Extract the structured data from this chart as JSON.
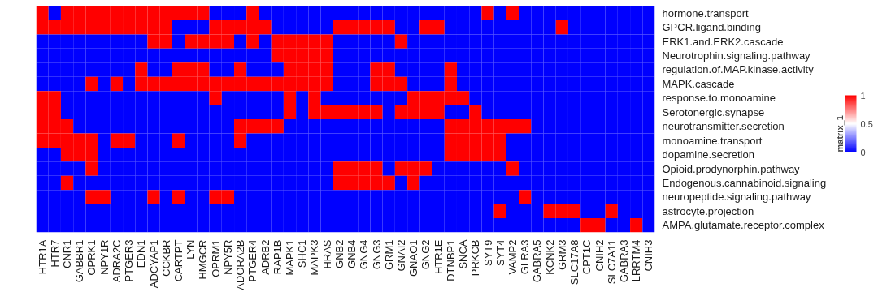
{
  "chart_data": {
    "type": "heatmap",
    "clabel": "matrix_1",
    "clim": [
      0,
      1
    ],
    "cticks": [
      0,
      0.5,
      1
    ],
    "categories": [
      "HTR1A",
      "HTR7",
      "CNR1",
      "GABBR1",
      "OPRK1",
      "NPY1R",
      "ADRA2C",
      "PTGER3",
      "EDN1",
      "ADCYAP1",
      "CCKBR",
      "CARTPT",
      "LYN",
      "HMGCR",
      "OPRM1",
      "NPY5R",
      "ADORA2B",
      "PTGER4",
      "ADRB2",
      "RAP1B",
      "MAPK1",
      "SHC1",
      "MAPK3",
      "HRAS",
      "GNB2",
      "GNB4",
      "GNG4",
      "GNG3",
      "GRM1",
      "GNAI2",
      "GNAO1",
      "GNG2",
      "HTR1E",
      "DTNBP1",
      "SNCA",
      "PRKCB",
      "SYT9",
      "SYT4",
      "VAMP2",
      "GLRA3",
      "GABRA5",
      "KCNK2",
      "GRM3",
      "SLC17A8",
      "CPT1C",
      "CNIH2",
      "SLC7A11",
      "GABRA3",
      "LRRTM4",
      "CNIH3"
    ],
    "y_categories": [
      "hormone.transport",
      "GPCR.ligand.binding",
      "ERK1.and.ERK2.cascade",
      "Neurotrophin.signaling.pathway",
      "regulation.of.MAP.kinase.activity",
      "MAPK.cascade",
      "response.to.monoamine",
      "Serotonergic.synapse",
      "neurotransmitter.secretion",
      "monoamine.transport",
      "dopamine.secretion",
      "Opioid.prodynorphin.pathway",
      "Endogenous.cannabinoid.signaling",
      "neuropeptide.signaling.pathway",
      "astrocyte.projection",
      "AMPA.glutamate.receptor.complex"
    ],
    "cells": [
      [
        1,
        0,
        1,
        1,
        1,
        1,
        1,
        1,
        1,
        1,
        1,
        1,
        1,
        1,
        0,
        0,
        0,
        1,
        0,
        0,
        0,
        0,
        0,
        0,
        0,
        0,
        0,
        0,
        0,
        0,
        0,
        0,
        0,
        0,
        0,
        0,
        1,
        0,
        1,
        0,
        0,
        0,
        0,
        0,
        0,
        0,
        0,
        0,
        0,
        0
      ],
      [
        1,
        1,
        1,
        1,
        1,
        1,
        1,
        1,
        1,
        1,
        1,
        0,
        0,
        0,
        1,
        1,
        1,
        1,
        1,
        0,
        0,
        0,
        0,
        0,
        1,
        1,
        1,
        1,
        1,
        0,
        0,
        1,
        1,
        0,
        0,
        0,
        0,
        0,
        0,
        0,
        0,
        0,
        1,
        0,
        0,
        0,
        0,
        0,
        0,
        0
      ],
      [
        0,
        0,
        0,
        0,
        0,
        0,
        0,
        0,
        0,
        1,
        1,
        0,
        1,
        1,
        1,
        1,
        0,
        1,
        0,
        1,
        1,
        1,
        1,
        1,
        0,
        0,
        0,
        0,
        0,
        1,
        0,
        0,
        0,
        0,
        0,
        0,
        0,
        0,
        0,
        0,
        0,
        0,
        0,
        0,
        0,
        0,
        0,
        0,
        0,
        0
      ],
      [
        0,
        0,
        0,
        0,
        0,
        0,
        0,
        0,
        0,
        0,
        0,
        0,
        0,
        0,
        0,
        0,
        0,
        0,
        0,
        1,
        1,
        1,
        1,
        1,
        0,
        0,
        0,
        0,
        0,
        0,
        0,
        0,
        0,
        0,
        0,
        0,
        0,
        0,
        0,
        0,
        0,
        0,
        0,
        0,
        0,
        0,
        0,
        0,
        0,
        0
      ],
      [
        0,
        0,
        0,
        0,
        0,
        0,
        0,
        0,
        1,
        0,
        0,
        1,
        1,
        1,
        0,
        0,
        1,
        0,
        0,
        0,
        1,
        1,
        1,
        1,
        0,
        0,
        0,
        1,
        1,
        0,
        0,
        0,
        0,
        1,
        0,
        0,
        0,
        0,
        0,
        0,
        0,
        0,
        0,
        0,
        0,
        0,
        0,
        0,
        0,
        0
      ],
      [
        0,
        0,
        0,
        0,
        1,
        0,
        1,
        0,
        1,
        1,
        1,
        1,
        1,
        1,
        1,
        1,
        1,
        1,
        1,
        1,
        1,
        1,
        1,
        1,
        0,
        0,
        0,
        1,
        1,
        1,
        0,
        0,
        0,
        1,
        0,
        0,
        0,
        0,
        0,
        0,
        0,
        0,
        0,
        0,
        0,
        0,
        0,
        0,
        0,
        0
      ],
      [
        1,
        1,
        0,
        0,
        0,
        0,
        0,
        0,
        0,
        0,
        0,
        0,
        0,
        0,
        1,
        0,
        0,
        0,
        0,
        0,
        1,
        0,
        1,
        0,
        0,
        0,
        0,
        0,
        0,
        0,
        1,
        1,
        1,
        1,
        1,
        0,
        0,
        0,
        0,
        0,
        0,
        0,
        0,
        0,
        0,
        0,
        0,
        0,
        0,
        0
      ],
      [
        1,
        1,
        0,
        0,
        0,
        0,
        0,
        0,
        0,
        0,
        0,
        0,
        0,
        0,
        0,
        0,
        0,
        0,
        0,
        0,
        1,
        0,
        1,
        1,
        1,
        1,
        1,
        1,
        0,
        1,
        1,
        1,
        1,
        0,
        0,
        1,
        0,
        0,
        0,
        0,
        0,
        0,
        0,
        0,
        0,
        0,
        0,
        0,
        0,
        0
      ],
      [
        1,
        1,
        1,
        0,
        0,
        0,
        0,
        0,
        0,
        0,
        0,
        0,
        0,
        0,
        0,
        0,
        1,
        1,
        1,
        1,
        0,
        0,
        0,
        0,
        0,
        0,
        0,
        0,
        0,
        0,
        0,
        0,
        0,
        1,
        1,
        1,
        1,
        1,
        1,
        1,
        0,
        0,
        0,
        0,
        0,
        0,
        0,
        0,
        0,
        0
      ],
      [
        1,
        1,
        1,
        1,
        1,
        0,
        1,
        1,
        0,
        0,
        0,
        1,
        0,
        0,
        0,
        0,
        1,
        0,
        0,
        0,
        0,
        0,
        0,
        0,
        0,
        0,
        0,
        0,
        0,
        0,
        0,
        0,
        0,
        1,
        1,
        1,
        1,
        1,
        0,
        0,
        0,
        0,
        0,
        0,
        0,
        0,
        0,
        0,
        0,
        0
      ],
      [
        0,
        0,
        1,
        1,
        1,
        0,
        0,
        0,
        0,
        0,
        0,
        0,
        0,
        0,
        0,
        0,
        0,
        0,
        0,
        0,
        0,
        0,
        0,
        0,
        0,
        0,
        0,
        0,
        0,
        0,
        0,
        0,
        0,
        1,
        1,
        1,
        1,
        1,
        0,
        0,
        0,
        0,
        0,
        0,
        0,
        0,
        0,
        0,
        0,
        0
      ],
      [
        0,
        0,
        0,
        0,
        1,
        0,
        0,
        0,
        0,
        0,
        0,
        0,
        0,
        0,
        0,
        0,
        0,
        0,
        0,
        0,
        0,
        0,
        0,
        0,
        1,
        1,
        1,
        1,
        0,
        1,
        1,
        1,
        0,
        0,
        0,
        0,
        0,
        0,
        1,
        0,
        0,
        0,
        0,
        0,
        0,
        0,
        0,
        0,
        0,
        0
      ],
      [
        0,
        0,
        1,
        0,
        0,
        0,
        0,
        0,
        0,
        0,
        0,
        0,
        0,
        0,
        0,
        0,
        0,
        0,
        0,
        0,
        0,
        0,
        0,
        0,
        1,
        1,
        1,
        1,
        1,
        0,
        1,
        0,
        0,
        0,
        0,
        0,
        0,
        0,
        0,
        0,
        0,
        0,
        0,
        0,
        0,
        0,
        0,
        0,
        0,
        0
      ],
      [
        0,
        0,
        0,
        0,
        1,
        1,
        0,
        0,
        0,
        1,
        0,
        1,
        0,
        0,
        1,
        1,
        0,
        0,
        0,
        0,
        0,
        0,
        0,
        0,
        0,
        0,
        0,
        0,
        0,
        0,
        0,
        0,
        0,
        0,
        0,
        0,
        0,
        0,
        0,
        1,
        0,
        0,
        0,
        0,
        0,
        0,
        0,
        0,
        0,
        0
      ],
      [
        0,
        0,
        0,
        0,
        0,
        0,
        0,
        0,
        0,
        0,
        0,
        0,
        0,
        0,
        0,
        0,
        0,
        0,
        0,
        0,
        0,
        0,
        0,
        0,
        0,
        0,
        0,
        0,
        0,
        0,
        0,
        0,
        0,
        0,
        0,
        0,
        0,
        1,
        0,
        0,
        0,
        1,
        1,
        1,
        0,
        0,
        1,
        0,
        0,
        0
      ],
      [
        0,
        0,
        0,
        0,
        0,
        0,
        0,
        0,
        0,
        0,
        0,
        0,
        0,
        0,
        0,
        0,
        0,
        0,
        0,
        0,
        0,
        0,
        0,
        0,
        0,
        0,
        0,
        0,
        0,
        0,
        0,
        0,
        0,
        0,
        0,
        0,
        0,
        0,
        0,
        0,
        0,
        0,
        0,
        0,
        1,
        1,
        0,
        0,
        1,
        0
      ]
    ]
  }
}
